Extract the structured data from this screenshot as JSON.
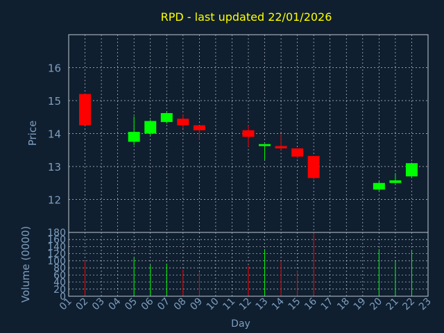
{
  "chart_data": {
    "type": "candlestick",
    "title": "RPD - last updated 22/01/2026",
    "title_color": "#ffff00",
    "background_color": "#0f1f30",
    "axis_color": "#c0c8d0",
    "label_color": "#7f9fbf",
    "up_color": "#00ff00",
    "down_color": "#ff0000",
    "grid": true,
    "xlabel": "Day",
    "x_ticks": [
      "01",
      "02",
      "03",
      "04",
      "05",
      "06",
      "07",
      "08",
      "09",
      "10",
      "11",
      "12",
      "13",
      "14",
      "15",
      "16",
      "17",
      "18",
      "19",
      "20",
      "21",
      "22",
      "23"
    ],
    "x_range": [
      1,
      23
    ],
    "price_panel": {
      "ylabel": "Price",
      "ylim": [
        11.0,
        17.0
      ],
      "y_ticks": [
        12,
        13,
        14,
        15,
        16
      ]
    },
    "volume_panel": {
      "ylabel": "Volume (0000)",
      "ylim": [
        0,
        180
      ],
      "y_ticks": [
        0,
        20,
        40,
        60,
        80,
        100,
        120,
        140,
        160,
        180
      ]
    },
    "candles": [
      {
        "day": 2,
        "open": 15.2,
        "high": 15.2,
        "low": 14.25,
        "close": 14.25,
        "volume": 100
      },
      {
        "day": 5,
        "open": 13.75,
        "high": 14.52,
        "low": 13.65,
        "close": 14.05,
        "volume": 108
      },
      {
        "day": 6,
        "open": 14.0,
        "high": 14.42,
        "low": 13.95,
        "close": 14.38,
        "volume": 88
      },
      {
        "day": 7,
        "open": 14.35,
        "high": 14.65,
        "low": 14.3,
        "close": 14.62,
        "volume": 92
      },
      {
        "day": 8,
        "open": 14.45,
        "high": 14.58,
        "low": 14.15,
        "close": 14.25,
        "volume": 75
      },
      {
        "day": 9,
        "open": 14.25,
        "high": 14.25,
        "low": 13.8,
        "close": 14.1,
        "volume": 68
      },
      {
        "day": 12,
        "open": 14.1,
        "high": 14.25,
        "low": 13.6,
        "close": 13.9,
        "volume": 85
      },
      {
        "day": 13,
        "open": 13.62,
        "high": 13.68,
        "low": 13.2,
        "close": 13.68,
        "volume": 133
      },
      {
        "day": 14,
        "open": 13.62,
        "high": 13.98,
        "low": 13.5,
        "close": 13.55,
        "volume": 100
      },
      {
        "day": 15,
        "open": 13.55,
        "high": 13.55,
        "low": 13.25,
        "close": 13.3,
        "volume": 72
      },
      {
        "day": 16,
        "open": 13.32,
        "high": 13.32,
        "low": 12.6,
        "close": 12.65,
        "volume": 180
      },
      {
        "day": 20,
        "open": 12.3,
        "high": 12.55,
        "low": 12.25,
        "close": 12.5,
        "volume": 133
      },
      {
        "day": 21,
        "open": 12.5,
        "high": 12.8,
        "low": 12.48,
        "close": 12.58,
        "volume": 100
      },
      {
        "day": 22,
        "open": 12.7,
        "high": 13.12,
        "low": 12.65,
        "close": 13.1,
        "volume": 130
      }
    ]
  }
}
